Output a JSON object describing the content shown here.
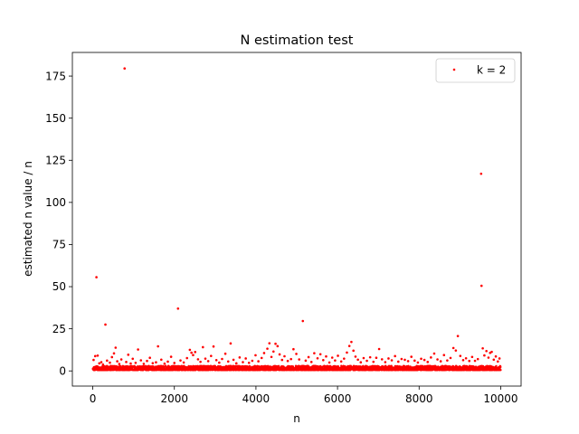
{
  "chart_data": {
    "type": "scatter",
    "title": "N estimation test",
    "xlabel": "n",
    "ylabel": "estimated n value / n",
    "xlim": [
      -500,
      10500
    ],
    "ylim": [
      -9,
      189
    ],
    "xticks": [
      0,
      2000,
      4000,
      6000,
      8000,
      10000
    ],
    "yticks": [
      0,
      25,
      50,
      75,
      100,
      125,
      150,
      175
    ],
    "grid": false,
    "legend_position": "top-right",
    "series": [
      {
        "name": "k = 2",
        "color": "#ff0000",
        "marker": "dot",
        "dense_band": {
          "x_range": [
            2,
            10000
          ],
          "y_range": [
            0,
            2.5
          ],
          "count": 4000
        },
        "points": [
          {
            "x": 20,
            "y": 6.5
          },
          {
            "x": 60,
            "y": 8.8
          },
          {
            "x": 90,
            "y": 55.6
          },
          {
            "x": 120,
            "y": 9.1
          },
          {
            "x": 160,
            "y": 4.5
          },
          {
            "x": 210,
            "y": 5.2
          },
          {
            "x": 250,
            "y": 3.8
          },
          {
            "x": 310,
            "y": 27.5
          },
          {
            "x": 350,
            "y": 6.1
          },
          {
            "x": 420,
            "y": 4.9
          },
          {
            "x": 470,
            "y": 8.2
          },
          {
            "x": 520,
            "y": 10.4
          },
          {
            "x": 560,
            "y": 13.8
          },
          {
            "x": 600,
            "y": 5.7
          },
          {
            "x": 650,
            "y": 4.1
          },
          {
            "x": 700,
            "y": 6.8
          },
          {
            "x": 780,
            "y": 179.5
          },
          {
            "x": 820,
            "y": 5.3
          },
          {
            "x": 870,
            "y": 9.6
          },
          {
            "x": 930,
            "y": 4.4
          },
          {
            "x": 980,
            "y": 7.2
          },
          {
            "x": 1050,
            "y": 4.8
          },
          {
            "x": 1110,
            "y": 12.7
          },
          {
            "x": 1180,
            "y": 6.3
          },
          {
            "x": 1250,
            "y": 4.2
          },
          {
            "x": 1330,
            "y": 5.9
          },
          {
            "x": 1400,
            "y": 7.8
          },
          {
            "x": 1470,
            "y": 4.6
          },
          {
            "x": 1550,
            "y": 5.1
          },
          {
            "x": 1600,
            "y": 14.6
          },
          {
            "x": 1680,
            "y": 6.7
          },
          {
            "x": 1760,
            "y": 4.3
          },
          {
            "x": 1840,
            "y": 5.5
          },
          {
            "x": 1920,
            "y": 8.4
          },
          {
            "x": 2000,
            "y": 4.7
          },
          {
            "x": 2090,
            "y": 37.0
          },
          {
            "x": 2150,
            "y": 6.2
          },
          {
            "x": 2230,
            "y": 5.0
          },
          {
            "x": 2310,
            "y": 7.6
          },
          {
            "x": 2380,
            "y": 12.5
          },
          {
            "x": 2420,
            "y": 10.8
          },
          {
            "x": 2460,
            "y": 9.4
          },
          {
            "x": 2510,
            "y": 11.2
          },
          {
            "x": 2580,
            "y": 6.9
          },
          {
            "x": 2640,
            "y": 5.4
          },
          {
            "x": 2700,
            "y": 14.1
          },
          {
            "x": 2760,
            "y": 7.3
          },
          {
            "x": 2830,
            "y": 5.8
          },
          {
            "x": 2900,
            "y": 8.9
          },
          {
            "x": 2960,
            "y": 14.5
          },
          {
            "x": 3030,
            "y": 6.4
          },
          {
            "x": 3100,
            "y": 4.9
          },
          {
            "x": 3170,
            "y": 7.1
          },
          {
            "x": 3250,
            "y": 10.2
          },
          {
            "x": 3320,
            "y": 5.6
          },
          {
            "x": 3380,
            "y": 16.3
          },
          {
            "x": 3450,
            "y": 6.6
          },
          {
            "x": 3520,
            "y": 4.5
          },
          {
            "x": 3600,
            "y": 8.0
          },
          {
            "x": 3680,
            "y": 5.2
          },
          {
            "x": 3750,
            "y": 7.4
          },
          {
            "x": 3830,
            "y": 4.8
          },
          {
            "x": 3910,
            "y": 6.0
          },
          {
            "x": 3990,
            "y": 9.3
          },
          {
            "x": 4060,
            "y": 5.7
          },
          {
            "x": 4140,
            "y": 7.7
          },
          {
            "x": 4200,
            "y": 10.6
          },
          {
            "x": 4280,
            "y": 13.2
          },
          {
            "x": 4330,
            "y": 16.4
          },
          {
            "x": 4380,
            "y": 8.3
          },
          {
            "x": 4430,
            "y": 11.5
          },
          {
            "x": 4480,
            "y": 16.1
          },
          {
            "x": 4530,
            "y": 14.7
          },
          {
            "x": 4580,
            "y": 9.8
          },
          {
            "x": 4640,
            "y": 6.5
          },
          {
            "x": 4700,
            "y": 8.7
          },
          {
            "x": 4780,
            "y": 5.9
          },
          {
            "x": 4860,
            "y": 7.0
          },
          {
            "x": 4920,
            "y": 12.9
          },
          {
            "x": 4990,
            "y": 10.1
          },
          {
            "x": 5060,
            "y": 6.8
          },
          {
            "x": 5150,
            "y": 29.6
          },
          {
            "x": 5220,
            "y": 6.1
          },
          {
            "x": 5290,
            "y": 8.2
          },
          {
            "x": 5360,
            "y": 5.3
          },
          {
            "x": 5430,
            "y": 10.5
          },
          {
            "x": 5510,
            "y": 7.5
          },
          {
            "x": 5580,
            "y": 9.9
          },
          {
            "x": 5650,
            "y": 6.4
          },
          {
            "x": 5720,
            "y": 8.6
          },
          {
            "x": 5800,
            "y": 5.0
          },
          {
            "x": 5870,
            "y": 7.9
          },
          {
            "x": 5940,
            "y": 6.2
          },
          {
            "x": 6010,
            "y": 9.0
          },
          {
            "x": 6090,
            "y": 5.6
          },
          {
            "x": 6160,
            "y": 7.3
          },
          {
            "x": 6230,
            "y": 10.9
          },
          {
            "x": 6290,
            "y": 14.8
          },
          {
            "x": 6340,
            "y": 17.2
          },
          {
            "x": 6390,
            "y": 12.0
          },
          {
            "x": 6440,
            "y": 8.5
          },
          {
            "x": 6500,
            "y": 6.7
          },
          {
            "x": 6570,
            "y": 5.1
          },
          {
            "x": 6640,
            "y": 7.6
          },
          {
            "x": 6720,
            "y": 6.0
          },
          {
            "x": 6800,
            "y": 8.1
          },
          {
            "x": 6880,
            "y": 5.4
          },
          {
            "x": 6950,
            "y": 7.8
          },
          {
            "x": 7020,
            "y": 13.0
          },
          {
            "x": 7090,
            "y": 6.9
          },
          {
            "x": 7170,
            "y": 5.2
          },
          {
            "x": 7250,
            "y": 7.4
          },
          {
            "x": 7330,
            "y": 6.3
          },
          {
            "x": 7410,
            "y": 8.8
          },
          {
            "x": 7490,
            "y": 5.5
          },
          {
            "x": 7570,
            "y": 7.1
          },
          {
            "x": 7650,
            "y": 6.6
          },
          {
            "x": 7730,
            "y": 5.8
          },
          {
            "x": 7810,
            "y": 8.4
          },
          {
            "x": 7890,
            "y": 6.1
          },
          {
            "x": 7970,
            "y": 5.0
          },
          {
            "x": 8050,
            "y": 7.2
          },
          {
            "x": 8130,
            "y": 6.5
          },
          {
            "x": 8210,
            "y": 5.3
          },
          {
            "x": 8290,
            "y": 8.0
          },
          {
            "x": 8370,
            "y": 10.3
          },
          {
            "x": 8450,
            "y": 6.8
          },
          {
            "x": 8530,
            "y": 5.7
          },
          {
            "x": 8610,
            "y": 9.4
          },
          {
            "x": 8690,
            "y": 6.2
          },
          {
            "x": 8770,
            "y": 7.7
          },
          {
            "x": 8840,
            "y": 13.6
          },
          {
            "x": 8900,
            "y": 12.1
          },
          {
            "x": 8950,
            "y": 20.7
          },
          {
            "x": 9010,
            "y": 8.9
          },
          {
            "x": 9080,
            "y": 6.4
          },
          {
            "x": 9150,
            "y": 7.5
          },
          {
            "x": 9230,
            "y": 5.9
          },
          {
            "x": 9300,
            "y": 8.3
          },
          {
            "x": 9370,
            "y": 6.0
          },
          {
            "x": 9440,
            "y": 7.0
          },
          {
            "x": 9520,
            "y": 117.0
          },
          {
            "x": 9530,
            "y": 50.5
          },
          {
            "x": 9560,
            "y": 13.4
          },
          {
            "x": 9600,
            "y": 9.2
          },
          {
            "x": 9650,
            "y": 11.8
          },
          {
            "x": 9700,
            "y": 7.9
          },
          {
            "x": 9740,
            "y": 10.7
          },
          {
            "x": 9780,
            "y": 11.3
          },
          {
            "x": 9830,
            "y": 6.7
          },
          {
            "x": 9880,
            "y": 8.6
          },
          {
            "x": 9930,
            "y": 5.6
          },
          {
            "x": 9970,
            "y": 7.4
          }
        ]
      }
    ]
  }
}
